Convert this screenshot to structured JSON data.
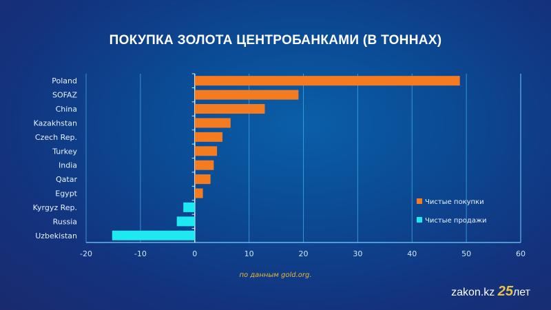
{
  "chart_data": {
    "type": "bar",
    "orientation": "horizontal",
    "title": "ПОКУПКА ЗОЛОТА ЦЕНТРОБАНКАМИ (В ТОННАХ)",
    "categories": [
      "Poland",
      "SOFAZ",
      "China",
      "Kazakhstan",
      "Czech Rep.",
      "Turkey",
      "India",
      "Qatar",
      "Egypt",
      "Kyrgyz Rep.",
      "Russia",
      "Uzbekistan"
    ],
    "values": [
      48.8,
      19.1,
      12.9,
      6.6,
      5.1,
      4.1,
      3.5,
      2.9,
      1.5,
      -2.1,
      -3.3,
      -15.2
    ],
    "xlim": [
      -20,
      60
    ],
    "xticks": [
      "-20",
      "-10",
      "0",
      "10",
      "20",
      "30",
      "40",
      "50",
      "60"
    ],
    "grid": true,
    "legend": {
      "position": "right",
      "entries": [
        {
          "label": "Чистые покупки",
          "color": "#f47b20"
        },
        {
          "label": "Чистые продажи",
          "color": "#1de9f0"
        }
      ]
    },
    "source": "по данным gold.org."
  },
  "logo": {
    "text": "zakon.kz",
    "number": "25",
    "suffix": "лет"
  }
}
